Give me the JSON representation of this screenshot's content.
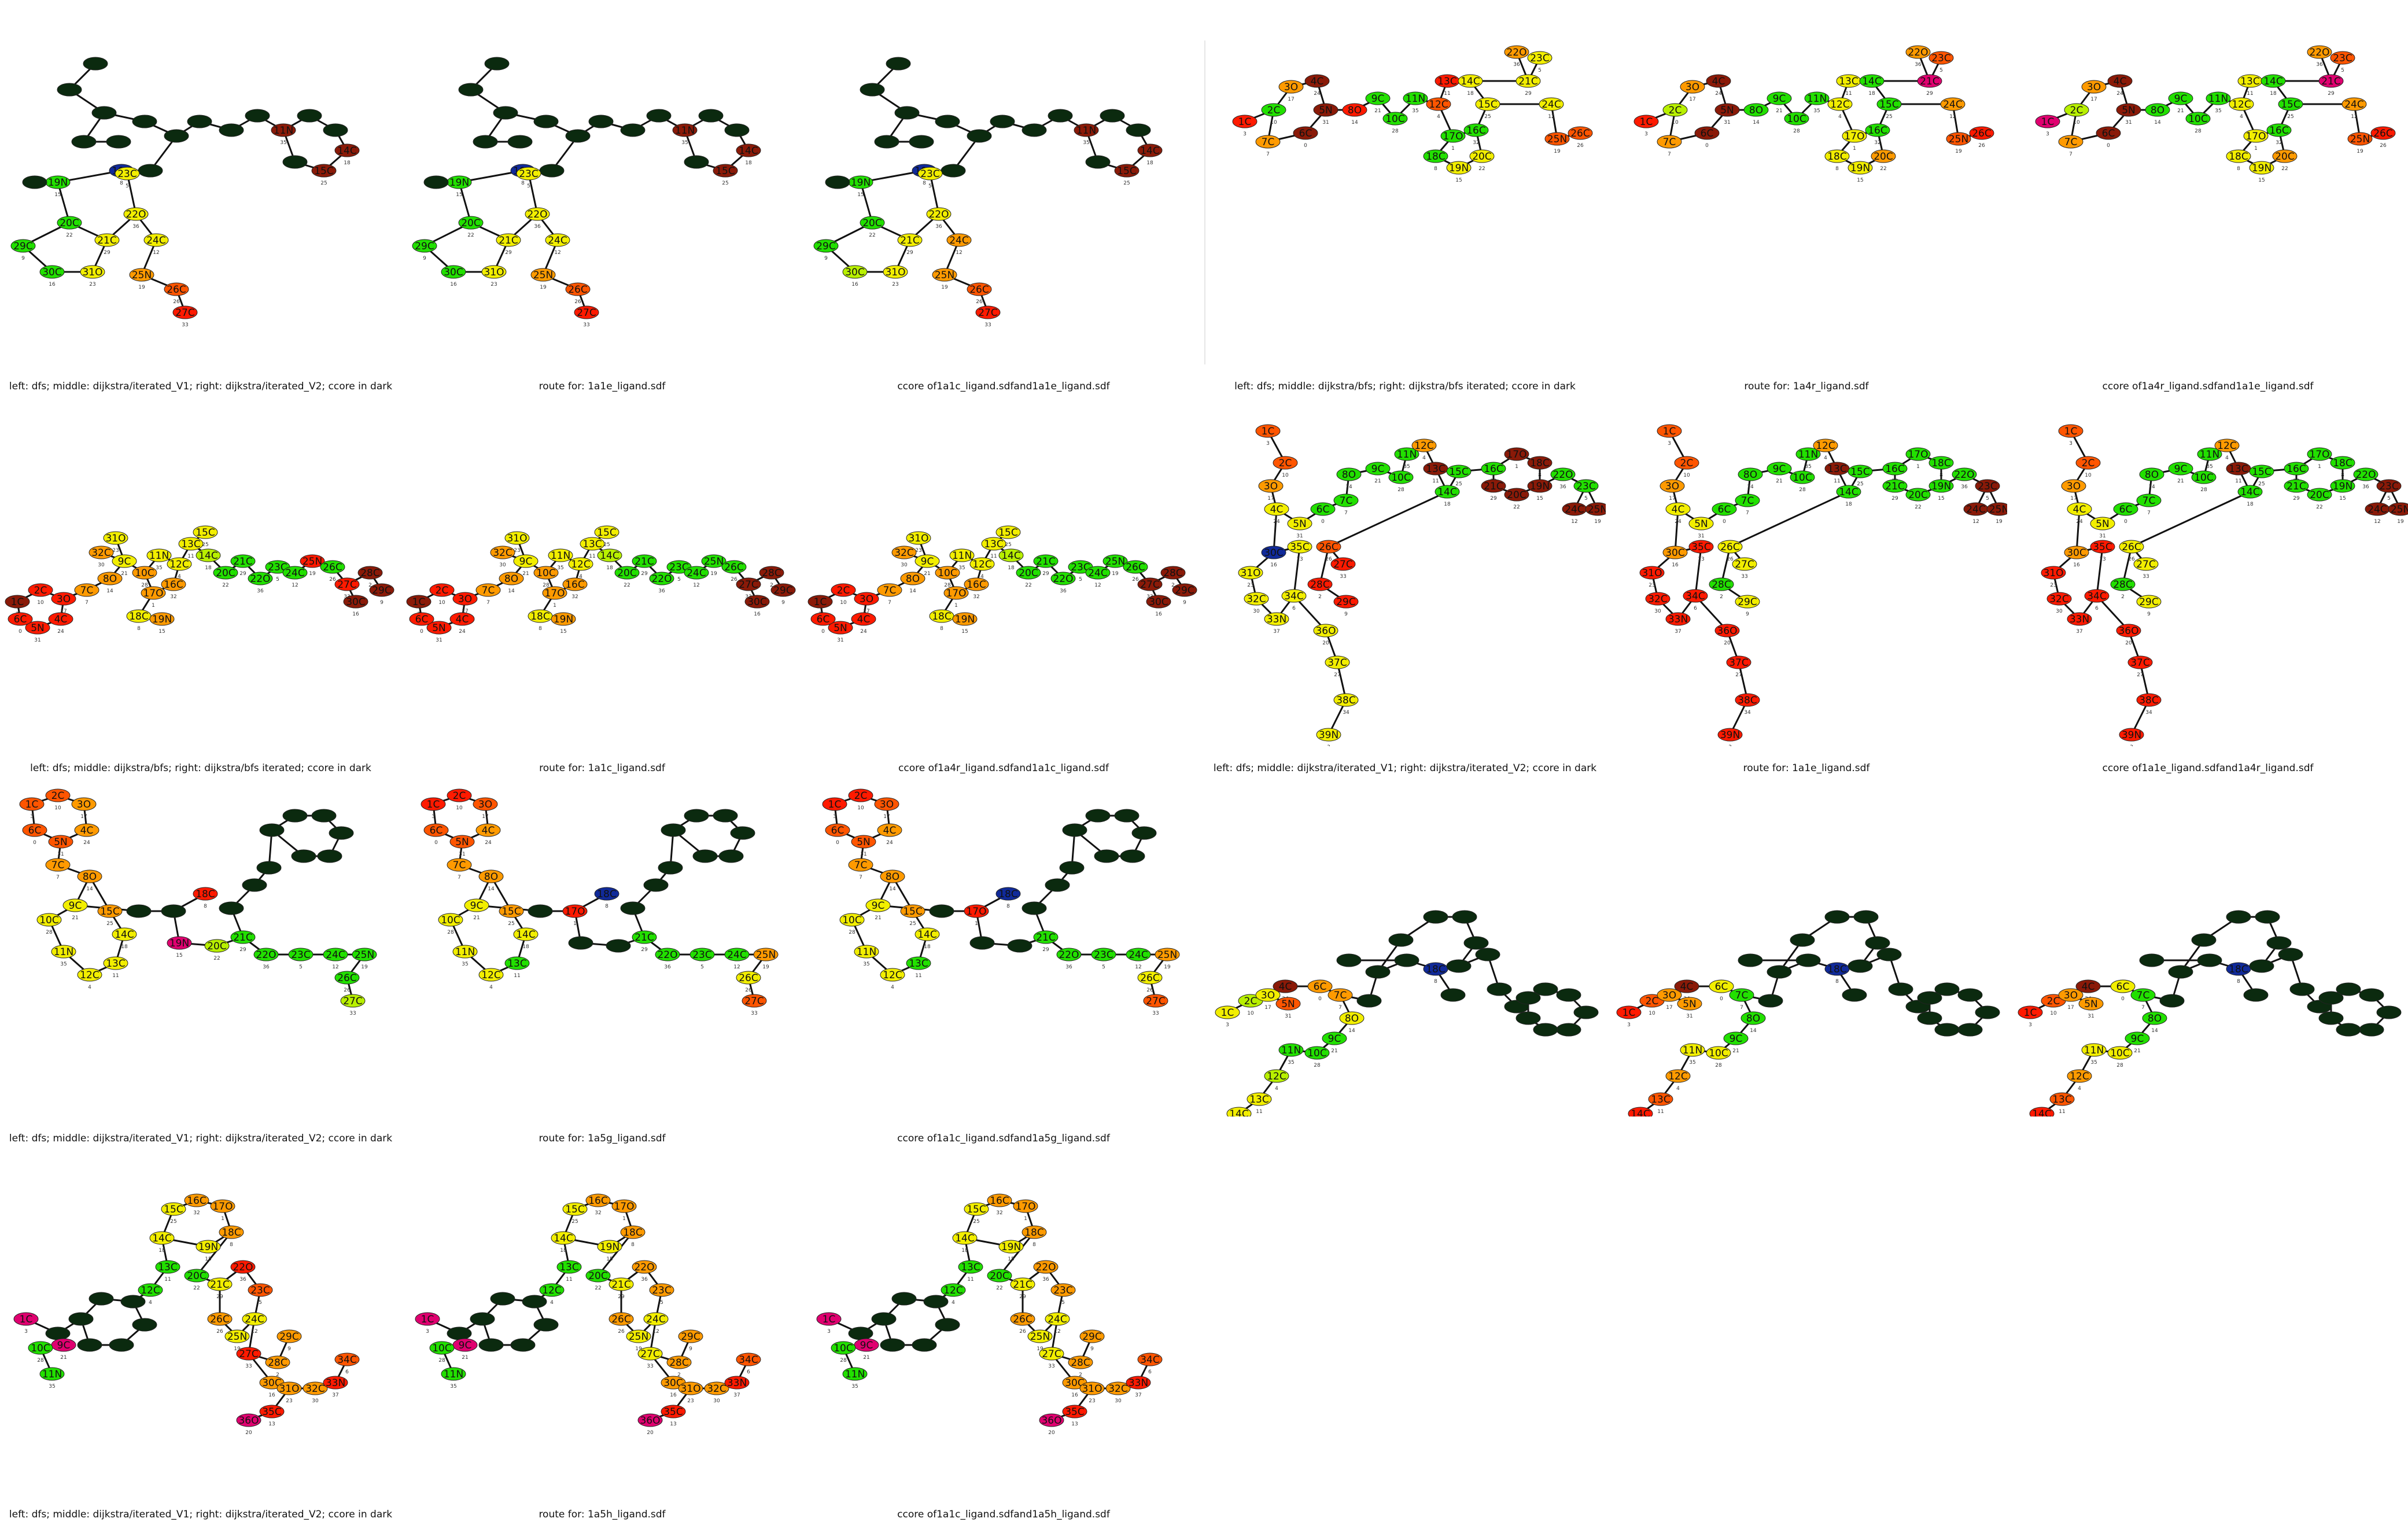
{
  "colors": {
    "dark": "#0b2a0f",
    "darkred": "#8a1a08",
    "red": "#ff1a00",
    "orangered": "#ff5500",
    "orange": "#ff9a00",
    "yellow": "#f2ee00",
    "chartreuse": "#b8f000",
    "green": "#22e000",
    "blue": "#102a9a",
    "magenta": "#e00070"
  },
  "panels": [
    {
      "caption": "left: dfs; middle: dijkstra/iterated_V1; right: dijkstra/iterated_V2; ccore in dark",
      "shape": 0,
      "mode": "A"
    },
    {
      "caption": "route for: 1a1e_ligand.sdf",
      "shape": 0,
      "mode": "A"
    },
    {
      "caption": "ccore of1a1c_ligand.sdfand1a1e_ligand.sdf",
      "shape": 0,
      "mode": "B"
    },
    {
      "caption": "left: dfs; middle: dijkstra/bfs; right: dijkstra/bfs iterated; ccore in dark",
      "shape": 1,
      "mode": "C"
    },
    {
      "caption": "route for: 1a4r_ligand.sdf",
      "shape": 1,
      "mode": "D"
    },
    {
      "caption": "ccore of1a4r_ligand.sdfand1a1e_ligand.sdf",
      "shape": 1,
      "mode": "E"
    },
    {
      "caption": "left: dfs; middle: dijkstra/bfs; right: dijkstra/bfs iterated; ccore in dark",
      "shape": 2,
      "mode": "F"
    },
    {
      "caption": "route for: 1a1c_ligand.sdf",
      "shape": 2,
      "mode": "G"
    },
    {
      "caption": "ccore of1a4r_ligand.sdfand1a1c_ligand.sdf",
      "shape": 2,
      "mode": "G"
    },
    {
      "caption": "left: dfs; middle: dijkstra/iterated_V1; right: dijkstra/iterated_V2; ccore in dark",
      "shape": 3,
      "mode": "H"
    },
    {
      "caption": "route for: 1a1e_ligand.sdf",
      "shape": 3,
      "mode": "I"
    },
    {
      "caption": "ccore of1a1e_ligand.sdfand1a4r_ligand.sdf",
      "shape": 3,
      "mode": "I"
    },
    {
      "caption": "left: dfs; middle: dijkstra/iterated_V1; right: dijkstra/iterated_V2; ccore in dark",
      "shape": 4,
      "mode": "J"
    },
    {
      "caption": "route for: 1a5g_ligand.sdf",
      "shape": 4,
      "mode": "K"
    },
    {
      "caption": "ccore of1a1c_ligand.sdfand1a5g_ligand.sdf",
      "shape": 4,
      "mode": "K"
    },
    {
      "caption": "",
      "shape": 5,
      "mode": "L"
    },
    {
      "caption": "",
      "shape": 5,
      "mode": "M"
    },
    {
      "caption": "",
      "shape": 5,
      "mode": "M"
    },
    {
      "caption": "left: dfs; middle: dijkstra/iterated_V1; right: dijkstra/iterated_V2; ccore in dark",
      "shape": 6,
      "mode": "N"
    },
    {
      "caption": "route for: 1a5h_ligand.sdf",
      "shape": 6,
      "mode": "O"
    },
    {
      "caption": "ccore of1a1c_ligand.sdfand1a5h_ligand.sdf",
      "shape": 6,
      "mode": "O"
    }
  ]
}
